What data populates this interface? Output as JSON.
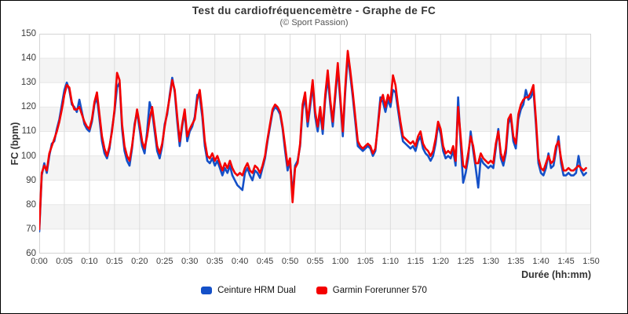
{
  "header": {
    "title": "Test du cardiofréquencemètre - Graphe de FC",
    "subtitle": "(© Sport Passion)"
  },
  "colors": {
    "hrm_blue": "#1450c8",
    "garmin_red": "#f40000",
    "band_gray": "#f4f4f4",
    "grid_line": "#dcdcdc",
    "plot_border": "#d4d4d4",
    "title_text": "#333333",
    "tick_text": "#3d3d3d"
  },
  "chart_data": {
    "type": "line",
    "title": "Test du cardiofréquencemètre - Graphe de FC",
    "subtitle": "(© Sport Passion)",
    "xlabel": "Durée (hh:mm)",
    "ylabel": "FC (bpm)",
    "ylim": [
      60,
      150
    ],
    "xlim_minutes": [
      0,
      110
    ],
    "y_ticks": [
      60,
      70,
      80,
      90,
      100,
      110,
      120,
      130,
      140,
      150
    ],
    "x_ticks": [
      "0:00",
      "0:05",
      "0:10",
      "0:15",
      "0:20",
      "0:25",
      "0:30",
      "0:35",
      "0:40",
      "0:45",
      "0:50",
      "0:55",
      "1:00",
      "1:05",
      "1:10",
      "1:15",
      "1:20",
      "1:25",
      "1:30",
      "1:35",
      "1:40",
      "1:45",
      "1:50"
    ],
    "grid": true,
    "band_fill_every_10bpm": true,
    "legend_position": "bottom",
    "sample_interval_minutes": 0.5,
    "series": [
      {
        "name": "Ceinture HRM Dual",
        "color": "#1450c8",
        "values": [
          69,
          92,
          97,
          93,
          100,
          105,
          106,
          111,
          115,
          121,
          127,
          130,
          127,
          121,
          120,
          118,
          123,
          118,
          113,
          111,
          110,
          114,
          121,
          124,
          115,
          106,
          101,
          99,
          103,
          111,
          118,
          128,
          130,
          111,
          102,
          98,
          96,
          103,
          113,
          118,
          111,
          104,
          101,
          110,
          122,
          118,
          110,
          102,
          99,
          104,
          113,
          117,
          125,
          132,
          126,
          114,
          104,
          112,
          118,
          106,
          110,
          112,
          116,
          125,
          124,
          116,
          104,
          98,
          97,
          99,
          96,
          98,
          95,
          92,
          95,
          93,
          96,
          92,
          90,
          88,
          87,
          86,
          93,
          95,
          92,
          90,
          94,
          93,
          91,
          95,
          99,
          106,
          112,
          118,
          120,
          119,
          117,
          111,
          102,
          94,
          98,
          84,
          96,
          98,
          104,
          119,
          124,
          112,
          120,
          129,
          116,
          110,
          118,
          109,
          123,
          132,
          121,
          112,
          124,
          136,
          122,
          108,
          126,
          141,
          133,
          124,
          114,
          104,
          103,
          102,
          103,
          104,
          103,
          100,
          102,
          113,
          124,
          122,
          118,
          123,
          120,
          127,
          126,
          119,
          112,
          106,
          105,
          104,
          103,
          104,
          102,
          106,
          108,
          103,
          101,
          100,
          98,
          100,
          105,
          113,
          109,
          102,
          99,
          100,
          99,
          102,
          96,
          124,
          105,
          89,
          93,
          99,
          110,
          102,
          95,
          87,
          99,
          97,
          96,
          95,
          96,
          95,
          103,
          111,
          99,
          96,
          101,
          113,
          116,
          106,
          103,
          115,
          119,
          121,
          127,
          123,
          124,
          127,
          113,
          97,
          93,
          92,
          95,
          101,
          95,
          96,
          102,
          108,
          97,
          92,
          92,
          93,
          92,
          92,
          93,
          100,
          94,
          92,
          93
        ]
      },
      {
        "name": "Garmin Forerunner 570",
        "color": "#f40000",
        "values": [
          70,
          93,
          96,
          94,
          101,
          104,
          107,
          110,
          114,
          119,
          125,
          129,
          128,
          122,
          119,
          119,
          120,
          117,
          114,
          112,
          111,
          115,
          122,
          126,
          117,
          108,
          103,
          100,
          104,
          110,
          119,
          134,
          131,
          113,
          104,
          100,
          98,
          104,
          112,
          119,
          113,
          106,
          103,
          108,
          115,
          120,
          112,
          104,
          101,
          105,
          112,
          118,
          124,
          131,
          127,
          116,
          106,
          113,
          119,
          108,
          111,
          113,
          115,
          123,
          127,
          118,
          106,
          100,
          99,
          101,
          98,
          100,
          97,
          94,
          97,
          95,
          98,
          95,
          93,
          92,
          93,
          92,
          95,
          97,
          94,
          93,
          96,
          95,
          93,
          96,
          100,
          107,
          113,
          119,
          121,
          120,
          118,
          112,
          104,
          96,
          99,
          81,
          95,
          97,
          105,
          121,
          126,
          114,
          122,
          131,
          118,
          112,
          120,
          111,
          125,
          135,
          123,
          114,
          126,
          138,
          124,
          110,
          128,
          143,
          135,
          126,
          116,
          106,
          104,
          103,
          104,
          105,
          104,
          101,
          103,
          112,
          122,
          125,
          120,
          125,
          122,
          133,
          129,
          121,
          114,
          108,
          107,
          106,
          105,
          106,
          104,
          108,
          110,
          105,
          103,
          102,
          100,
          102,
          107,
          114,
          111,
          104,
          101,
          102,
          101,
          104,
          98,
          120,
          108,
          96,
          95,
          101,
          108,
          104,
          97,
          97,
          101,
          99,
          98,
          97,
          98,
          97,
          105,
          110,
          101,
          98,
          103,
          115,
          117,
          108,
          105,
          117,
          121,
          123,
          124,
          124,
          126,
          129,
          115,
          99,
          95,
          94,
          97,
          100,
          97,
          98,
          104,
          106,
          99,
          94,
          94,
          95,
          94,
          94,
          95,
          96,
          95,
          94,
          95
        ]
      }
    ]
  },
  "legend": {
    "items": [
      {
        "label": "Ceinture HRM Dual",
        "color": "#1450c8"
      },
      {
        "label": "Garmin Forerunner 570",
        "color": "#f40000"
      }
    ]
  },
  "axes": {
    "x_title": "Durée (hh:mm)",
    "y_title": "FC (bpm)"
  }
}
